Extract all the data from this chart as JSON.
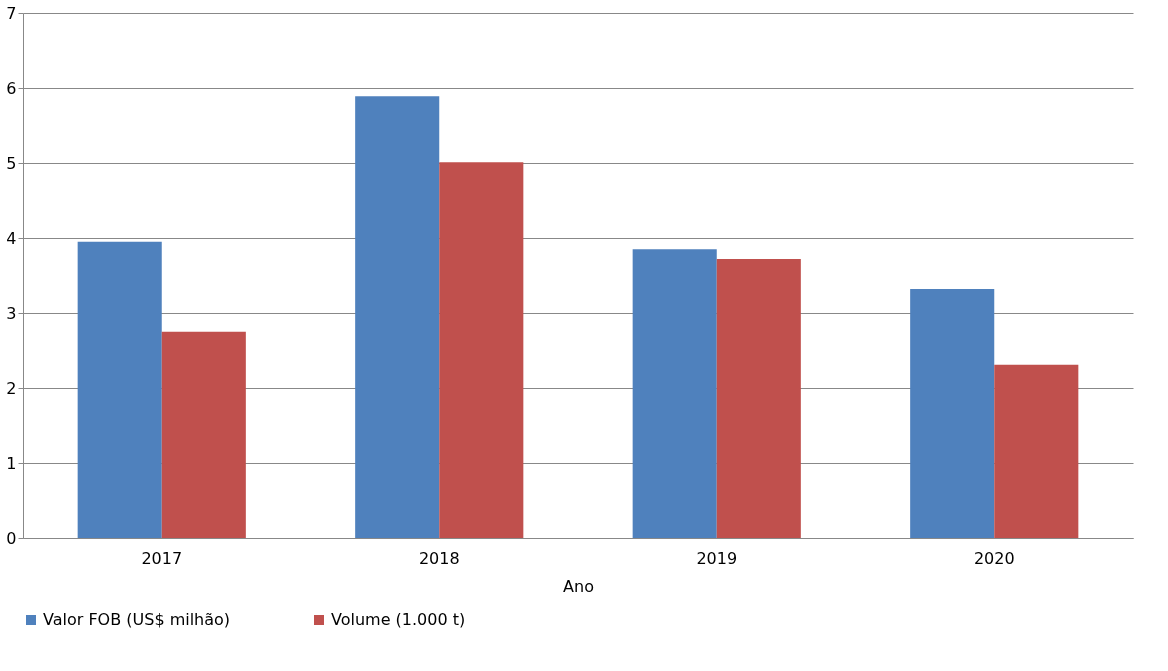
{
  "chart_data": {
    "type": "bar",
    "xlabel": "Ano",
    "categories": [
      "2017",
      "2018",
      "2019",
      "2020"
    ],
    "series": [
      {
        "name": "Valor FOB (US$ milhão)",
        "color": "#4f81bd",
        "values": [
          3.95,
          5.89,
          3.85,
          3.32
        ]
      },
      {
        "name": "Volume (1.000 t)",
        "color": "#c0504d",
        "values": [
          2.75,
          5.01,
          3.72,
          2.31
        ]
      }
    ],
    "ylim": [
      0,
      7
    ],
    "yticks": [
      0,
      1,
      2,
      3,
      4,
      5,
      6,
      7
    ],
    "grid": "y",
    "legend": "bottom"
  }
}
